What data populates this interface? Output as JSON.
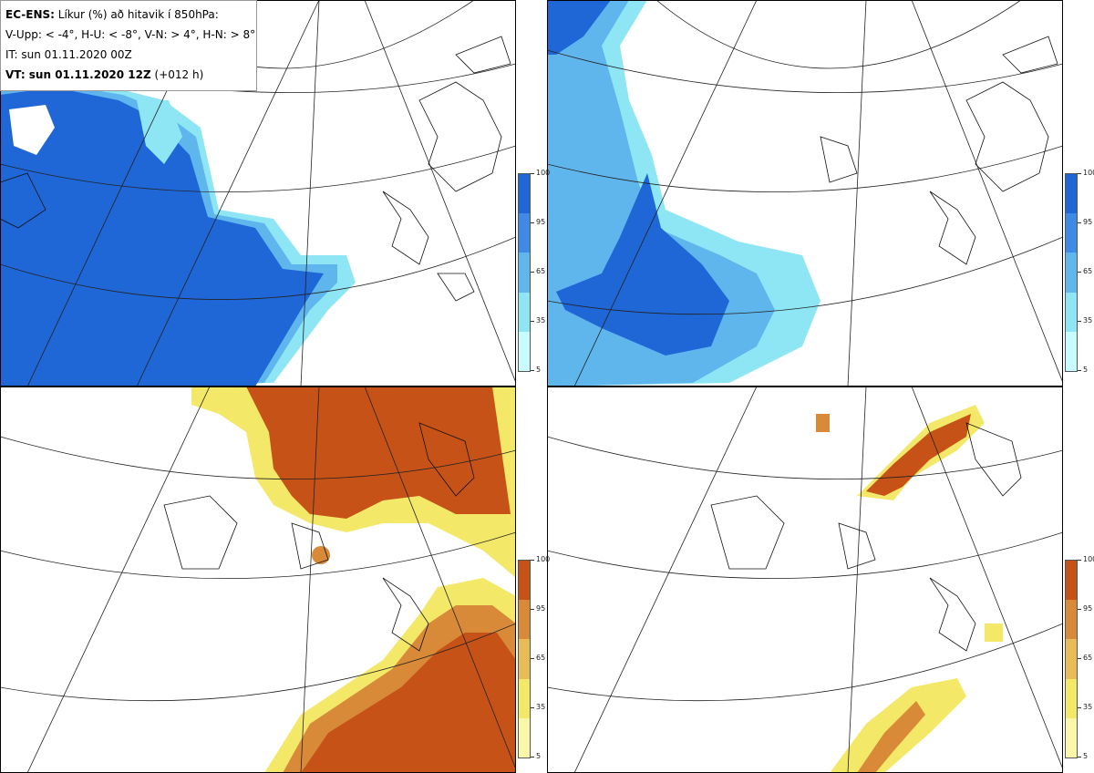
{
  "legend": {
    "title_bold": "EC-ENS:",
    "title_rest": "Líkur (%) að hitavik í 850hPa:",
    "thresholds": "V-Upp: < -4°, H-U: < -8°, V-N: > 4°, H-N: > 8°",
    "init_time": "IT: sun 01.11.2020 00Z",
    "valid_bold": "VT: sun 01.11.2020 12Z",
    "valid_rest": "(+012 h)"
  },
  "colorbars": {
    "cold_ticks": [
      "100",
      "95",
      "65",
      "35",
      "5"
    ],
    "warm_ticks": [
      "100",
      "95",
      "65",
      "35",
      "5"
    ],
    "cold_colors": [
      "#1f66d6",
      "#3f8ae4",
      "#5fb6ec",
      "#8ee6f4",
      "#c8fbfd"
    ],
    "warm_colors": [
      "#c65218",
      "#d88a38",
      "#e8bd58",
      "#f4e868",
      "#fbf7a8"
    ]
  },
  "panels": [
    {
      "id": "V-Upp",
      "probability_level": "cold < -4°"
    },
    {
      "id": "H-U",
      "probability_level": "cold < -8°"
    },
    {
      "id": "V-N",
      "probability_level": "warm > 4°"
    },
    {
      "id": "H-N",
      "probability_level": "warm > 8°"
    }
  ]
}
